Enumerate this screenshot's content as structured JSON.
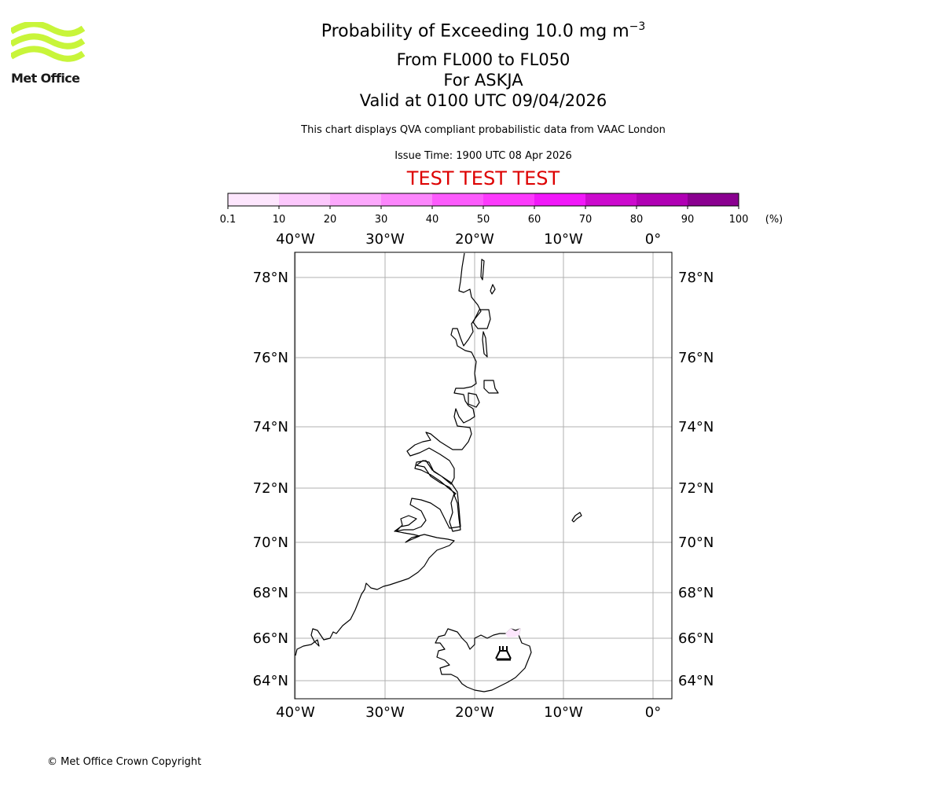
{
  "logo": {
    "name": "Met Office",
    "accent_color": "#c8f53a"
  },
  "header": {
    "title_main": "Probability of Exceeding 10.0 mg m",
    "title_superscript": "−3",
    "flight_levels": "From FL000 to FL050",
    "volcano": "For ASKJA",
    "valid_time": "Valid at 0100 UTC 09/04/2026",
    "description": "This chart displays QVA compliant probabilistic data from VAAC London",
    "issue_time": "Issue Time: 1900 UTC 08 Apr 2026",
    "test_banner": "TEST TEST TEST",
    "test_banner_color": "#dd0000"
  },
  "colorbar": {
    "tick_labels": [
      "0.1",
      "10",
      "20",
      "30",
      "40",
      "50",
      "60",
      "70",
      "80",
      "90",
      "100"
    ],
    "unit": "(%)",
    "colors": [
      "#fde6fd",
      "#fcc8fc",
      "#fca8fc",
      "#fc86fc",
      "#fc5bfc",
      "#fc3afc",
      "#f118f9",
      "#cc0ace",
      "#b000b4",
      "#8a0090",
      "#620066"
    ]
  },
  "map": {
    "lon_labels": [
      "40°W",
      "30°W",
      "20°W",
      "10°W",
      "0°"
    ],
    "lat_labels": [
      "78°N",
      "76°N",
      "74°N",
      "72°N",
      "70°N",
      "68°N",
      "66°N",
      "64°N"
    ],
    "volcano_symbol": "volcano-icon",
    "gridline_color": "#b0b0b0"
  },
  "footer": {
    "copyright": "© Met Office Crown Copyright"
  }
}
